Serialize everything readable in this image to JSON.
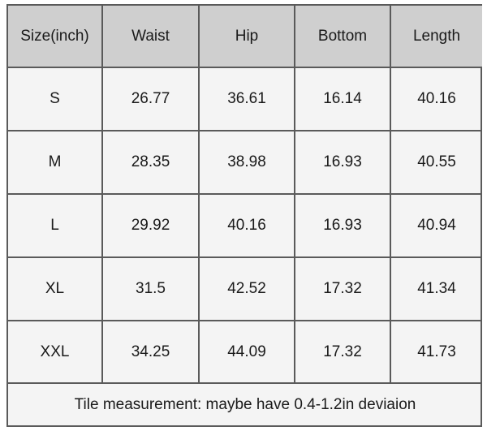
{
  "table": {
    "header": [
      "Size(inch)",
      "Waist",
      "Hip",
      "Bottom",
      "Length"
    ],
    "rows": [
      [
        "S",
        "26.77",
        "36.61",
        "16.14",
        "40.16"
      ],
      [
        "M",
        "28.35",
        "38.98",
        "16.93",
        "40.55"
      ],
      [
        "L",
        "29.92",
        "40.16",
        "16.93",
        "40.94"
      ],
      [
        "XL",
        "31.5",
        "42.52",
        "17.32",
        "41.34"
      ],
      [
        "XXL",
        "34.25",
        "44.09",
        "17.32",
        "41.73"
      ]
    ],
    "note": "Tile measurement: maybe have 0.4-1.2in deviaion"
  }
}
